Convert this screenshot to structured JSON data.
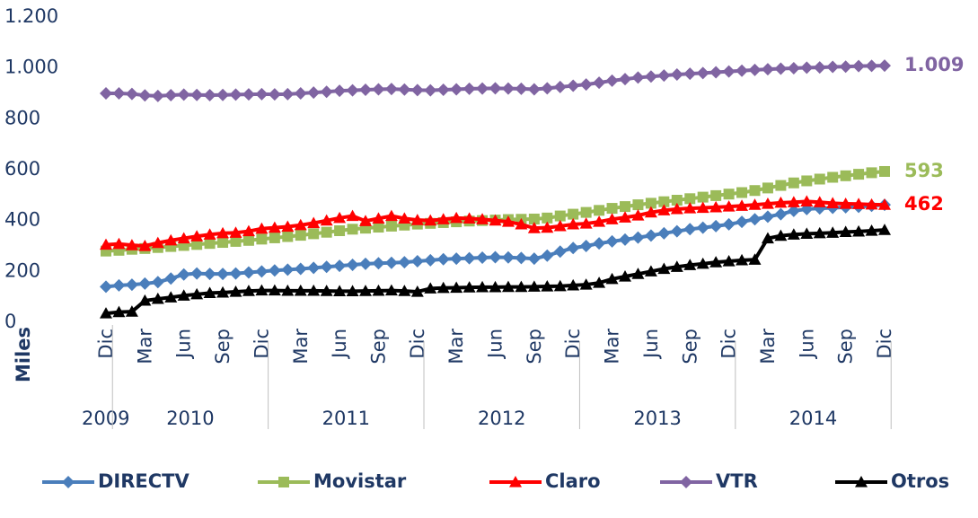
{
  "chart_data": {
    "type": "line",
    "categories": [
      "Dic",
      null,
      null,
      "Mar",
      null,
      null,
      "Jun",
      null,
      null,
      "Sep",
      null,
      null,
      "Dic",
      null,
      null,
      "Mar",
      null,
      null,
      "Jun",
      null,
      null,
      "Sep",
      null,
      null,
      "Dic",
      null,
      null,
      "Mar",
      null,
      null,
      "Jun",
      null,
      null,
      "Sep",
      null,
      null,
      "Dic",
      null,
      null,
      "Mar",
      null,
      null,
      "Jun",
      null,
      null,
      "Sep",
      null,
      null,
      "Dic",
      null,
      null,
      "Mar",
      null,
      null,
      "Jun",
      null,
      null,
      "Sep",
      null,
      null,
      "Dic"
    ],
    "year_groups": [
      "2009",
      "2010",
      "2011",
      "2012",
      "2013",
      "2014"
    ],
    "y_label": "Miles",
    "ylim": [
      0,
      1200
    ],
    "yticks": [
      0,
      200,
      400,
      600,
      800,
      {
        "value": 1000,
        "label": "1.000"
      },
      {
        "value": 1200,
        "label": "1.200"
      }
    ],
    "grid": false,
    "legend": "bottom",
    "series": [
      {
        "name": "DIRECTV",
        "color": "#4a7ebb",
        "marker": "diamond",
        "values": [
          140,
          145,
          148,
          152,
          158,
          172,
          188,
          192,
          190,
          190,
          192,
          196,
          200,
          204,
          207,
          210,
          214,
          218,
          222,
          226,
          230,
          232,
          234,
          236,
          240,
          244,
          248,
          250,
          252,
          254,
          256,
          255,
          253,
          250,
          262,
          278,
          292,
          300,
          310,
          318,
          325,
          333,
          341,
          350,
          358,
          366,
          372,
          378,
          385,
          395,
          405,
          415,
          425,
          438,
          445,
          448,
          450,
          452,
          454,
          458,
          462
        ]
      },
      {
        "name": "Movistar",
        "color": "#9bbb59",
        "marker": "square",
        "values": [
          280,
          283,
          287,
          290,
          294,
          298,
          302,
          306,
          310,
          314,
          318,
          322,
          327,
          332,
          337,
          342,
          348,
          354,
          360,
          366,
          370,
          374,
          378,
          382,
          386,
          389,
          392,
          395,
          398,
          400,
          402,
          404,
          405,
          406,
          410,
          418,
          425,
          432,
          440,
          448,
          455,
          462,
          468,
          474,
          480,
          486,
          492,
          498,
          504,
          510,
          518,
          528,
          538,
          548,
          556,
          563,
          570,
          576,
          582,
          588,
          593
        ],
        "value_labels": [
          null,
          null,
          null,
          null,
          null,
          null,
          null,
          null,
          null,
          null,
          null,
          null,
          null,
          null,
          null,
          null,
          null,
          null,
          null,
          null,
          null,
          null,
          null,
          null,
          null,
          null,
          null,
          null,
          null,
          null,
          null,
          null,
          null,
          null,
          null,
          null,
          null,
          null,
          null,
          null,
          null,
          null,
          null,
          null,
          null,
          null,
          null,
          null,
          null,
          null,
          null,
          null,
          null,
          null,
          null,
          null,
          null,
          null,
          null,
          null,
          "593"
        ]
      },
      {
        "name": "Claro",
        "color": "#ff0000",
        "marker": "triangle",
        "values": [
          305,
          308,
          303,
          300,
          312,
          322,
          330,
          338,
          345,
          350,
          352,
          358,
          368,
          372,
          376,
          382,
          390,
          400,
          410,
          418,
          398,
          408,
          418,
          408,
          402,
          400,
          405,
          410,
          408,
          405,
          400,
          395,
          385,
          370,
          372,
          378,
          385,
          388,
          395,
          405,
          412,
          420,
          432,
          440,
          445,
          448,
          450,
          452,
          455,
          458,
          462,
          466,
          470,
          472,
          475,
          472,
          468,
          466,
          465,
          463,
          462
        ],
        "value_labels": [
          null,
          null,
          null,
          null,
          null,
          null,
          null,
          null,
          null,
          null,
          null,
          null,
          null,
          null,
          null,
          null,
          null,
          null,
          null,
          null,
          null,
          null,
          null,
          null,
          null,
          null,
          null,
          null,
          null,
          null,
          null,
          null,
          null,
          null,
          null,
          null,
          null,
          null,
          null,
          null,
          null,
          null,
          null,
          null,
          null,
          null,
          null,
          null,
          null,
          null,
          null,
          null,
          null,
          null,
          null,
          null,
          null,
          null,
          null,
          null,
          "462"
        ]
      },
      {
        "name": "VTR",
        "color": "#8064a2",
        "marker": "diamond",
        "values": [
          900,
          900,
          898,
          892,
          890,
          893,
          895,
          894,
          893,
          894,
          895,
          896,
          897,
          896,
          897,
          900,
          903,
          906,
          910,
          912,
          914,
          916,
          917,
          915,
          913,
          912,
          914,
          916,
          918,
          919,
          920,
          919,
          918,
          916,
          920,
          925,
          930,
          935,
          942,
          950,
          956,
          962,
          966,
          970,
          974,
          977,
          980,
          983,
          986,
          989,
          992,
          995,
          997,
          999,
          1001,
          1002,
          1004,
          1005,
          1007,
          1008,
          1009
        ],
        "value_labels": [
          null,
          null,
          null,
          null,
          null,
          null,
          null,
          null,
          null,
          null,
          null,
          null,
          null,
          null,
          null,
          null,
          null,
          null,
          null,
          null,
          null,
          null,
          null,
          null,
          null,
          null,
          null,
          null,
          null,
          null,
          null,
          null,
          null,
          null,
          null,
          null,
          null,
          null,
          null,
          null,
          null,
          null,
          null,
          null,
          null,
          null,
          null,
          null,
          null,
          null,
          null,
          null,
          null,
          null,
          null,
          null,
          null,
          null,
          null,
          null,
          "1.009"
        ]
      },
      {
        "name": "Otros",
        "color": "#000000",
        "marker": "triangle",
        "values": [
          35,
          40,
          42,
          85,
          92,
          98,
          105,
          110,
          115,
          117,
          120,
          123,
          125,
          125,
          124,
          124,
          124,
          123,
          122,
          122,
          123,
          124,
          125,
          123,
          120,
          133,
          135,
          136,
          137,
          138,
          138,
          139,
          139,
          140,
          141,
          142,
          145,
          148,
          155,
          170,
          180,
          190,
          200,
          210,
          218,
          225,
          230,
          236,
          240,
          244,
          246,
          330,
          340,
          345,
          348,
          350,
          352,
          355,
          357,
          360,
          363
        ]
      }
    ]
  }
}
